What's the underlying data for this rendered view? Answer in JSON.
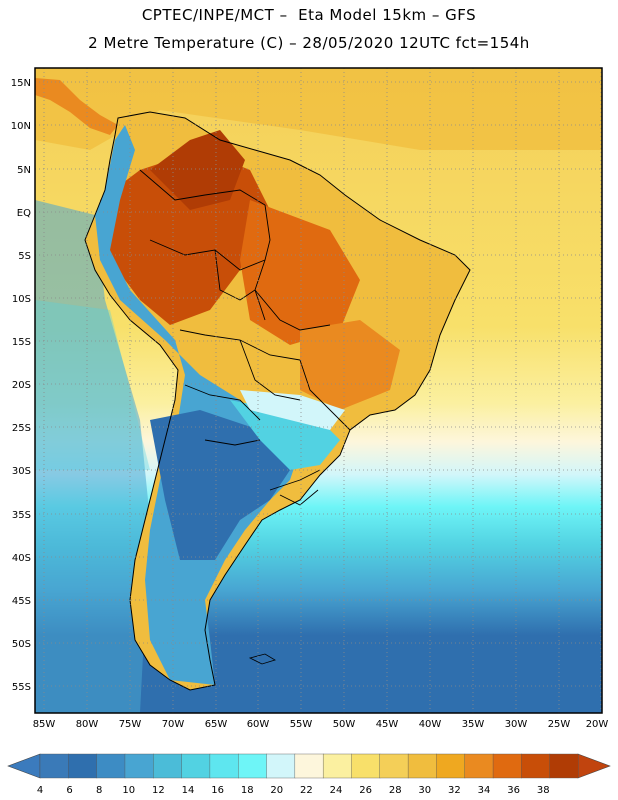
{
  "header": {
    "line1": "CPTEC/INPE/MCT –  Eta Model 15km – GFS",
    "line2": "2 Metre Temperature (C) – 28/05/2020 12UTC fct=154h"
  },
  "axes": {
    "lat_labels": [
      "15N",
      "10N",
      "5N",
      "EQ",
      "5S",
      "10S",
      "15S",
      "20S",
      "25S",
      "30S",
      "35S",
      "40S",
      "45S",
      "50S",
      "55S"
    ],
    "lon_labels": [
      "85W",
      "80W",
      "75W",
      "70W",
      "65W",
      "60W",
      "55W",
      "50W",
      "45W",
      "40W",
      "35W",
      "30W",
      "25W",
      "20W"
    ]
  },
  "colorbar": {
    "labels": [
      "4",
      "6",
      "8",
      "10",
      "12",
      "14",
      "16",
      "18",
      "20",
      "22",
      "24",
      "26",
      "28",
      "30",
      "32",
      "34",
      "36",
      "38"
    ],
    "colors": [
      "#3a7ab8",
      "#2f6fae",
      "#3d8cc4",
      "#48a5d2",
      "#4bbcd8",
      "#52d2e2",
      "#5ee6ef",
      "#6ef5f7",
      "#d2f6fa",
      "#fdf6dc",
      "#fbf0a0",
      "#f8e06a",
      "#f4cf58",
      "#f0bd3e",
      "#efa820",
      "#ea8a20",
      "#e06a10",
      "#c84e08",
      "#b03c05"
    ],
    "under_color": "#3b7bbd",
    "over_color": "#c1440e"
  }
}
